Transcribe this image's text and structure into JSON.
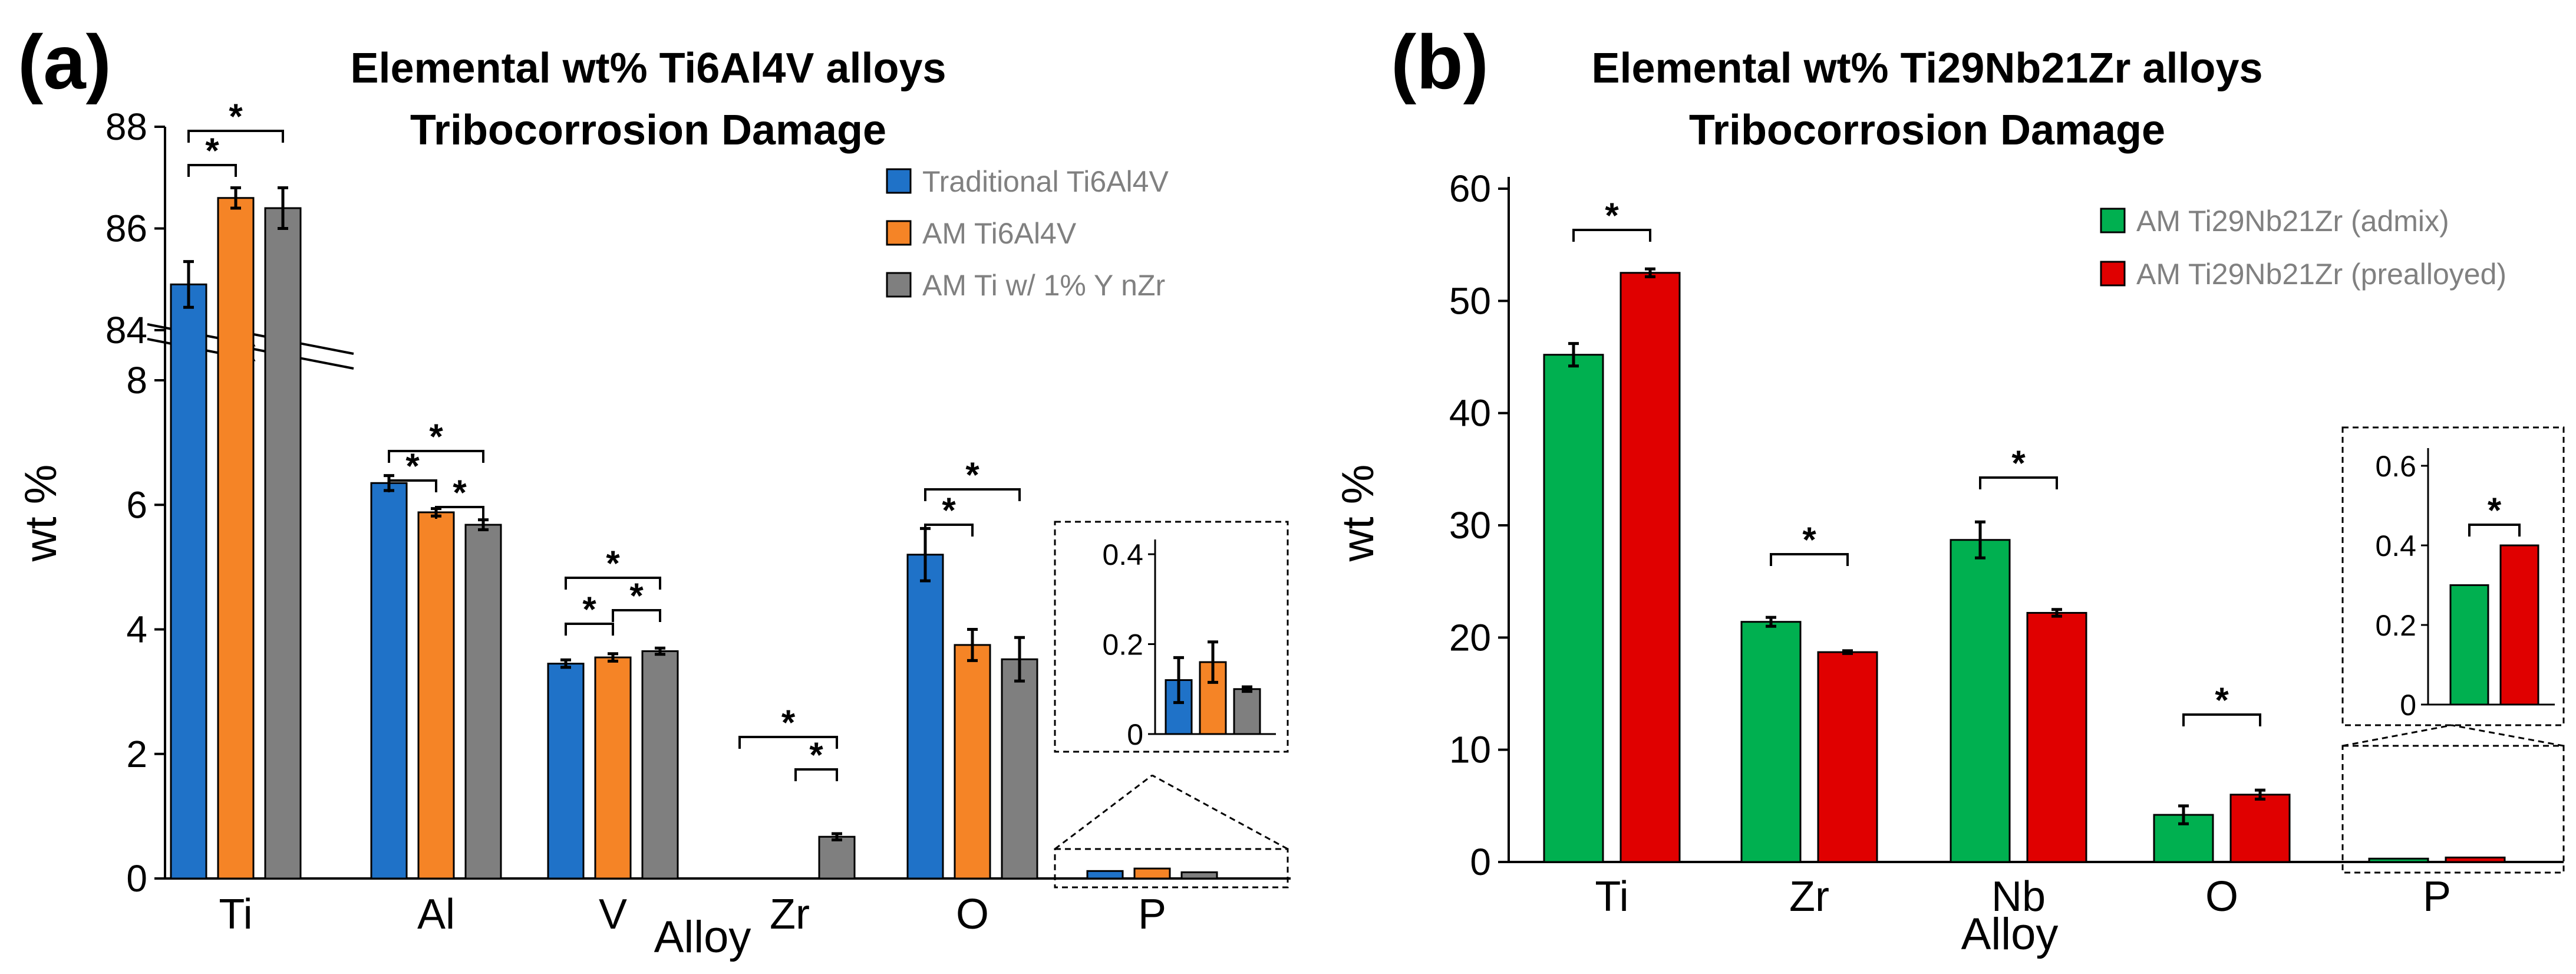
{
  "chart_data": [
    {
      "type": "bar",
      "panel_label": "(a)",
      "title": [
        "Elemental wt% Ti6Al4V alloys",
        "Tribocorrosion Damage"
      ],
      "xlabel": "Alloy",
      "ylabel": "wt %",
      "y_axis": "broken",
      "ylim_lower": [
        0,
        8
      ],
      "ylim_upper": [
        84,
        88
      ],
      "yticks": [
        "0",
        "2",
        "4",
        "6",
        "8",
        "84",
        "86",
        "88"
      ],
      "categories": [
        "Ti",
        "Al",
        "V",
        "Zr",
        "O",
        "P"
      ],
      "series": [
        {
          "name": "Traditional Ti6Al4V",
          "color": "#1f72c8",
          "values": [
            84.9,
            6.35,
            3.45,
            null,
            5.2,
            0.12
          ],
          "errors": [
            0.45,
            0.12,
            0.06,
            null,
            0.42,
            0.05
          ]
        },
        {
          "name": "AM Ti6Al4V",
          "color": "#f58426",
          "values": [
            86.6,
            5.88,
            3.55,
            null,
            3.75,
            0.16
          ],
          "errors": [
            0.2,
            0.06,
            0.06,
            null,
            0.25,
            0.045
          ]
        },
        {
          "name": "AM Ti w/ 1% Y nZr",
          "color": "#7f7f7f",
          "values": [
            86.4,
            5.68,
            3.65,
            0.67,
            3.52,
            0.1
          ],
          "errors": [
            0.4,
            0.08,
            0.05,
            0.05,
            0.35,
            0.005
          ]
        }
      ],
      "significance_marker": "*",
      "inset": {
        "category": "P",
        "ylim": [
          0,
          0.4
        ],
        "yticks": [
          "0",
          "0.2",
          "0.4"
        ]
      },
      "legend": "top-right",
      "grid": false
    },
    {
      "type": "bar",
      "panel_label": "(b)",
      "title": [
        "Elemental wt% Ti29Nb21Zr alloys",
        "Tribocorrosion Damage"
      ],
      "xlabel": "Alloy",
      "ylabel": "wt %",
      "ylim": [
        0,
        60
      ],
      "yticks": [
        "0",
        "10",
        "20",
        "30",
        "40",
        "50",
        "60"
      ],
      "categories": [
        "Ti",
        "Zr",
        "Nb",
        "O",
        "P"
      ],
      "series": [
        {
          "name": "AM Ti29Nb21Zr (admix)",
          "color": "#00b050",
          "values": [
            45.2,
            21.4,
            28.7,
            4.2,
            0.3
          ],
          "errors": [
            1.0,
            0.4,
            1.6,
            0.8,
            0.005
          ]
        },
        {
          "name": "AM Ti29Nb21Zr (prealloyed)",
          "color": "#e00000",
          "values": [
            52.5,
            18.7,
            22.2,
            6.0,
            0.4
          ],
          "errors": [
            0.35,
            0.12,
            0.3,
            0.4,
            0.005
          ]
        }
      ],
      "significance_marker": "*",
      "inset": {
        "category": "P",
        "ylim": [
          0,
          0.6
        ],
        "yticks": [
          "0",
          "0.2",
          "0.4",
          "0.6"
        ]
      },
      "legend": "top-right",
      "grid": false
    }
  ]
}
